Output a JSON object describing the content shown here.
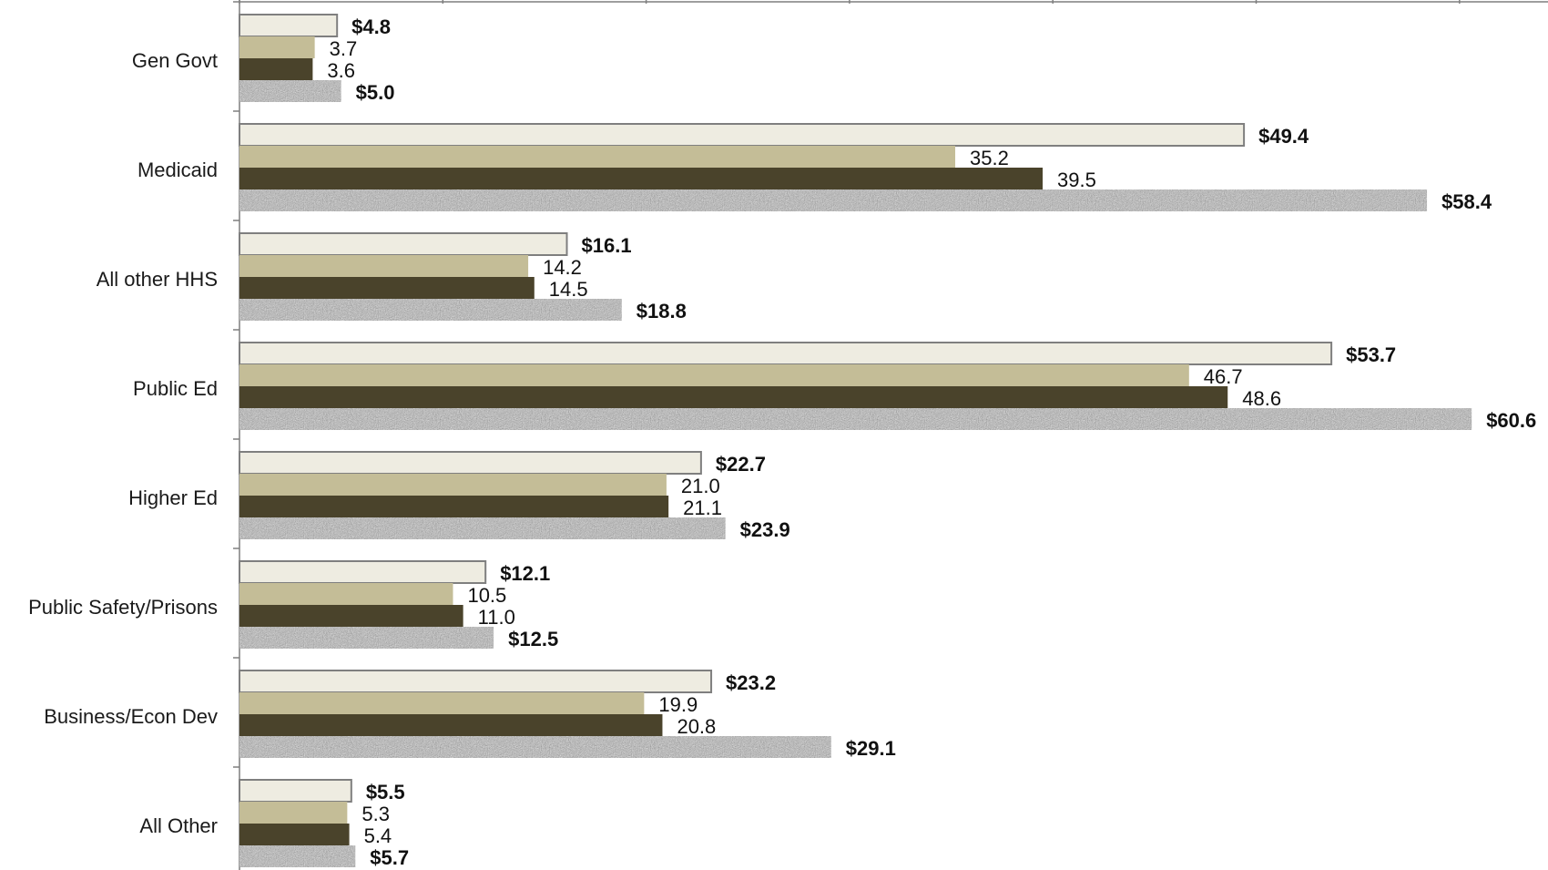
{
  "chart_data": {
    "type": "bar",
    "orientation": "horizontal",
    "xlim": [
      0,
      62
    ],
    "grid": false,
    "categories": [
      "Gen Govt",
      "Medicaid",
      "All other HHS",
      "Public Ed",
      "Higher Ed",
      "Public Safety/Prisons",
      "Business/Econ Dev",
      "All Other"
    ],
    "series": [
      {
        "values": [
          4.8,
          49.4,
          16.1,
          53.7,
          22.7,
          12.1,
          23.2,
          5.5
        ],
        "labels": [
          "$4.8",
          "$49.4",
          "$16.1",
          "$53.7",
          "$22.7",
          "$12.1",
          "$23.2",
          "$5.5"
        ],
        "color": "#eeece1",
        "stroke": "#7f7f7f",
        "label_bold": true
      },
      {
        "values": [
          3.7,
          35.2,
          14.2,
          46.7,
          21.0,
          10.5,
          19.9,
          5.3
        ],
        "labels": [
          "3.7",
          "35.2",
          "14.2",
          "46.7",
          "21.0",
          "10.5",
          "19.9",
          "5.3"
        ],
        "color": "#c4bd97",
        "label_bold": false
      },
      {
        "values": [
          3.6,
          39.5,
          14.5,
          48.6,
          21.1,
          11.0,
          20.8,
          5.4
        ],
        "labels": [
          "3.6",
          "39.5",
          "14.5",
          "48.6",
          "21.1",
          "11.0",
          "20.8",
          "5.4"
        ],
        "color": "#4a432b",
        "label_bold": false
      },
      {
        "values": [
          5.0,
          58.4,
          18.8,
          60.6,
          23.9,
          12.5,
          29.1,
          5.7
        ],
        "labels": [
          "$5.0",
          "$58.4",
          "$18.8",
          "$60.6",
          "$23.9",
          "$12.5",
          "$29.1",
          "$5.7"
        ],
        "color": "#a8a8a8",
        "pattern": "granite",
        "label_bold": true
      }
    ]
  }
}
